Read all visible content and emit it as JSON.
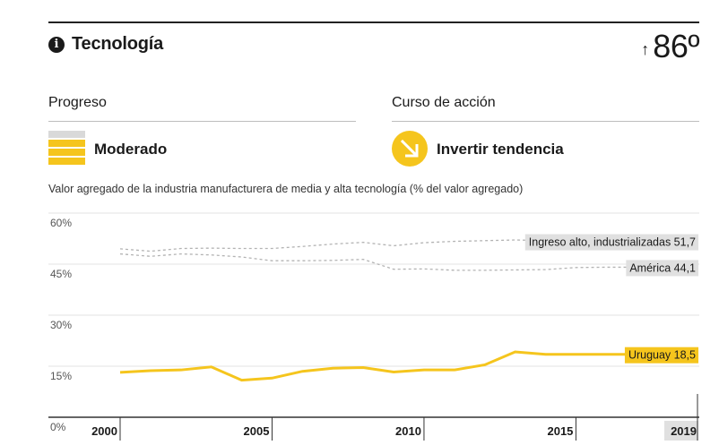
{
  "header": {
    "title": "Tecnología",
    "rank_value": "86º",
    "rank_arrow": "↑"
  },
  "progress": {
    "label": "Progreso",
    "status": "Moderado",
    "color": "#f5c51d"
  },
  "action": {
    "label": "Curso de acción",
    "status": "Invertir tendencia",
    "color": "#f5c51d"
  },
  "chart_data": {
    "type": "line",
    "title": "Valor agregado de la industria manufacturera de media y alta tecnología (% del valor agregado)",
    "ylim": [
      0,
      60
    ],
    "y_ticks": [
      "0%",
      "15%",
      "30%",
      "45%",
      "60%"
    ],
    "x_ticks": [
      2000,
      2005,
      2010,
      2015,
      2019
    ],
    "grid": true,
    "series": [
      {
        "name": "Ingreso alto, industrializadas",
        "label": "Ingreso alto, industrializadas 51,7",
        "style": "dashed",
        "color": "#b3b3b3",
        "x": [
          2000,
          2001,
          2002,
          2003,
          2004,
          2005,
          2006,
          2007,
          2008,
          2009,
          2010,
          2011,
          2012,
          2013,
          2014,
          2015,
          2016,
          2017,
          2018,
          2019
        ],
        "values": [
          49.5,
          48.8,
          49.6,
          49.7,
          49.6,
          49.6,
          50.2,
          50.9,
          51.4,
          50.4,
          51.3,
          51.7,
          51.9,
          52.1,
          51.9,
          51.7,
          51.7,
          51.6,
          51.7,
          51.7
        ]
      },
      {
        "name": "América",
        "label": "América 44,1",
        "style": "dashed",
        "color": "#b3b3b3",
        "x": [
          2000,
          2001,
          2002,
          2003,
          2004,
          2005,
          2006,
          2007,
          2008,
          2009,
          2010,
          2011,
          2012,
          2013,
          2014,
          2015,
          2016,
          2017,
          2018,
          2019
        ],
        "values": [
          48.0,
          47.3,
          48.0,
          47.7,
          47.1,
          46.0,
          46.0,
          46.1,
          46.4,
          43.5,
          43.6,
          43.2,
          43.2,
          43.3,
          43.4,
          44.0,
          44.1,
          44.1,
          44.1,
          44.1
        ]
      },
      {
        "name": "Uruguay",
        "label": "Uruguay 18,5",
        "style": "solid",
        "color": "#f5c51d",
        "x": [
          2000,
          2001,
          2002,
          2003,
          2004,
          2005,
          2006,
          2007,
          2008,
          2009,
          2010,
          2011,
          2012,
          2013,
          2014,
          2015,
          2016,
          2017,
          2018,
          2019
        ],
        "values": [
          13.2,
          13.7,
          13.9,
          14.8,
          10.9,
          11.5,
          13.5,
          14.4,
          14.6,
          13.3,
          13.9,
          13.9,
          15.4,
          19.2,
          18.5,
          18.5,
          18.5,
          18.5,
          18.5,
          18.5
        ]
      }
    ]
  }
}
